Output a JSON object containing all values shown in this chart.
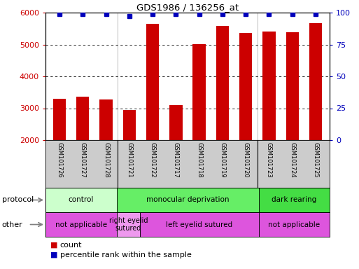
{
  "title": "GDS1986 / 136256_at",
  "samples": [
    "GSM101726",
    "GSM101727",
    "GSM101728",
    "GSM101721",
    "GSM101722",
    "GSM101717",
    "GSM101718",
    "GSM101719",
    "GSM101720",
    "GSM101723",
    "GSM101724",
    "GSM101725"
  ],
  "counts": [
    3300,
    3360,
    3270,
    2940,
    5650,
    3100,
    5020,
    5590,
    5360,
    5400,
    5380,
    5670
  ],
  "percentiles": [
    99,
    99,
    99,
    97,
    99,
    99,
    99,
    99,
    99,
    99,
    99,
    99
  ],
  "ylim_left": [
    2000,
    6000
  ],
  "ylim_right": [
    0,
    100
  ],
  "yticks_left": [
    2000,
    3000,
    4000,
    5000,
    6000
  ],
  "yticks_right": [
    0,
    25,
    50,
    75,
    100
  ],
  "bar_color": "#cc0000",
  "dot_color": "#0000bb",
  "protocol_groups": [
    {
      "label": "control",
      "start": 0,
      "end": 3,
      "color": "#ccffcc"
    },
    {
      "label": "monocular deprivation",
      "start": 3,
      "end": 9,
      "color": "#66ee66"
    },
    {
      "label": "dark rearing",
      "start": 9,
      "end": 12,
      "color": "#44dd44"
    }
  ],
  "other_groups": [
    {
      "label": "not applicable",
      "start": 0,
      "end": 3,
      "color": "#dd55dd"
    },
    {
      "label": "right eyelid\nsutured",
      "start": 3,
      "end": 4,
      "color": "#ee99ee"
    },
    {
      "label": "left eyelid sutured",
      "start": 4,
      "end": 9,
      "color": "#dd55dd"
    },
    {
      "label": "not applicable",
      "start": 9,
      "end": 12,
      "color": "#dd55dd"
    }
  ],
  "tick_color_left": "#cc0000",
  "tick_color_right": "#0000bb",
  "bg_color": "#ffffff",
  "xticklabel_bg": "#cccccc",
  "group_dividers": [
    3,
    9
  ],
  "legend_count_color": "#cc0000",
  "legend_pct_color": "#0000bb"
}
